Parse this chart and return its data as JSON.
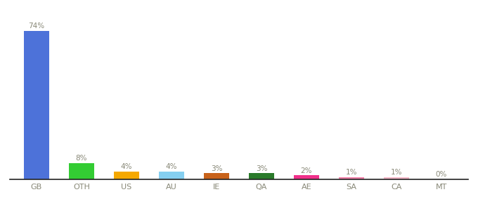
{
  "categories": [
    "GB",
    "OTH",
    "US",
    "AU",
    "IE",
    "QA",
    "AE",
    "SA",
    "CA",
    "MT"
  ],
  "values": [
    74,
    8,
    4,
    4,
    3,
    3,
    2,
    1,
    1,
    0
  ],
  "labels": [
    "74%",
    "8%",
    "4%",
    "4%",
    "3%",
    "3%",
    "2%",
    "1%",
    "1%",
    "0%"
  ],
  "colors": [
    "#4d72d9",
    "#33cc33",
    "#f5a800",
    "#85cff0",
    "#c8621a",
    "#2a7a2a",
    "#f0308a",
    "#f080a8",
    "#f4b8c8",
    "#f4d0d0"
  ],
  "background_color": "#ffffff",
  "ylim": [
    0,
    82
  ],
  "bar_width": 0.55,
  "label_color": "#888877",
  "tick_color": "#888877",
  "bottom_spine_color": "#222222"
}
